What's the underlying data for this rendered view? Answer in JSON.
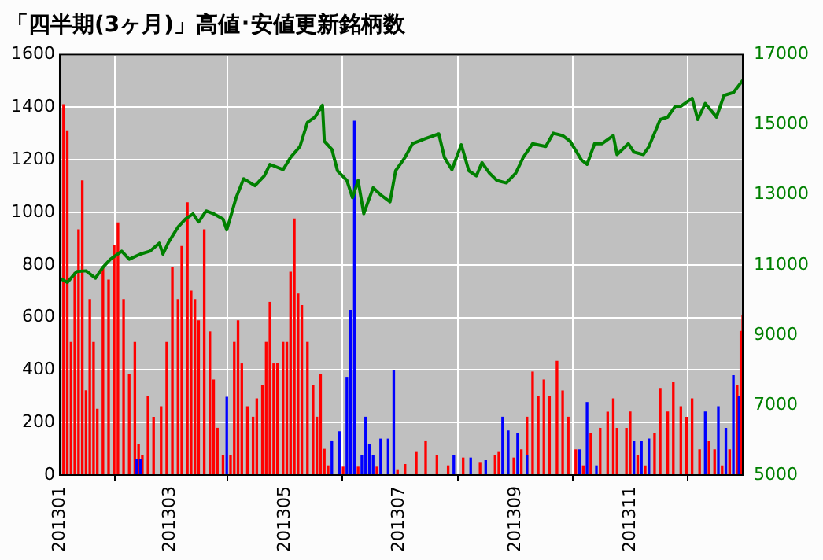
{
  "chart_data": {
    "type": "bar",
    "title": "「四半期(3ヶ月)」高値･安値更新銘柄数",
    "xlim": [
      "2013-01-01",
      "2013-12-31"
    ],
    "xticks": [
      {
        "value": "2013-01-01",
        "label": "201301"
      },
      {
        "value": "2013-03-01",
        "label": "201303"
      },
      {
        "value": "2013-05-01",
        "label": "201305"
      },
      {
        "value": "2013-07-01",
        "label": "201307"
      },
      {
        "value": "2013-09-01",
        "label": "201309"
      },
      {
        "value": "2013-11-01",
        "label": "201311"
      }
    ],
    "ylim": [
      0,
      1600
    ],
    "yticks": [
      0,
      200,
      400,
      600,
      800,
      1000,
      1200,
      1400,
      1600
    ],
    "y2lim": [
      5000,
      17000
    ],
    "y2ticks": [
      5000,
      7000,
      9000,
      11000,
      13000,
      15000,
      17000
    ],
    "grid": true,
    "legend": false,
    "series": [
      {
        "type": "bar",
        "color": "#ff0000",
        "x": [
          "2013-01-03",
          "2013-01-05",
          "2013-01-07",
          "2013-01-09",
          "2013-01-11",
          "2013-01-13",
          "2013-01-15",
          "2013-01-17",
          "2013-01-19",
          "2013-01-21",
          "2013-01-24",
          "2013-01-27",
          "2013-01-30",
          "2013-02-01",
          "2013-02-04",
          "2013-02-07",
          "2013-02-10",
          "2013-02-12",
          "2013-02-14",
          "2013-02-17",
          "2013-02-20",
          "2013-02-24",
          "2013-02-27",
          "2013-03-02",
          "2013-03-05",
          "2013-03-07",
          "2013-03-10",
          "2013-03-12",
          "2013-03-14",
          "2013-03-16",
          "2013-03-19",
          "2013-03-22",
          "2013-03-24",
          "2013-03-26",
          "2013-03-29",
          "2013-04-02",
          "2013-04-04",
          "2013-04-06",
          "2013-04-08",
          "2013-04-11",
          "2013-04-14",
          "2013-04-16",
          "2013-04-19",
          "2013-04-21",
          "2013-04-23",
          "2013-04-25",
          "2013-04-27",
          "2013-04-30",
          "2013-05-02",
          "2013-05-04",
          "2013-05-06",
          "2013-05-08",
          "2013-05-10",
          "2013-05-13",
          "2013-05-16",
          "2013-05-18",
          "2013-05-20",
          "2013-05-22",
          "2013-05-24",
          "2013-06-01",
          "2013-06-09",
          "2013-06-19",
          "2013-06-30",
          "2013-07-04",
          "2013-07-10",
          "2013-07-15",
          "2013-07-21",
          "2013-07-27",
          "2013-08-04",
          "2013-08-13",
          "2013-08-21",
          "2013-08-23",
          "2013-08-31",
          "2013-09-04",
          "2013-09-07",
          "2013-09-10",
          "2013-09-13",
          "2013-09-16",
          "2013-09-19",
          "2013-09-23",
          "2013-09-26",
          "2013-09-29",
          "2013-10-03",
          "2013-10-07",
          "2013-10-11",
          "2013-10-16",
          "2013-10-20",
          "2013-10-23",
          "2013-10-25",
          "2013-10-30",
          "2013-11-01",
          "2013-11-05",
          "2013-11-09",
          "2013-11-14",
          "2013-11-17",
          "2013-11-21",
          "2013-11-24",
          "2013-11-28",
          "2013-12-01",
          "2013-12-04",
          "2013-12-08",
          "2013-12-13",
          "2013-12-16",
          "2013-12-20",
          "2013-12-24",
          "2013-12-28",
          "2013-12-30",
          "2013-12-31"
        ],
        "values": [
          1410,
          1310,
          505,
          770,
          934,
          1120,
          321,
          668,
          505,
          250,
          790,
          742,
          873,
          960,
          668,
          382,
          505,
          117,
          75,
          300,
          220,
          260,
          505,
          790,
          668,
          870,
          1036,
          700,
          668,
          587,
          934,
          545,
          362,
          178,
          75,
          75,
          505,
          587,
          423,
          260,
          220,
          290,
          340,
          505,
          657,
          423,
          423,
          505,
          505,
          772,
          975,
          689,
          645,
          505,
          340,
          220,
          382,
          98,
          35,
          30,
          30,
          30,
          20,
          40,
          86,
          127,
          75,
          35,
          65,
          45,
          75,
          86,
          65,
          96,
          220,
          392,
          300,
          362,
          300,
          433,
          320,
          220,
          96,
          35,
          157,
          178,
          239,
          290,
          178,
          178,
          240,
          75,
          35,
          157,
          330,
          240,
          351,
          260,
          220,
          290,
          96,
          127,
          96,
          35,
          96,
          340,
          547,
          608
        ]
      },
      {
        "type": "bar",
        "color": "#0000ff",
        "x": [
          "2013-02-11",
          "2013-02-13",
          "2013-03-31",
          "2013-05-26",
          "2013-05-30",
          "2013-06-03",
          "2013-06-05",
          "2013-06-07",
          "2013-06-11",
          "2013-06-13",
          "2013-06-15",
          "2013-06-17",
          "2013-06-21",
          "2013-06-25",
          "2013-06-28",
          "2013-07-30",
          "2013-08-08",
          "2013-08-16",
          "2013-08-25",
          "2013-08-28",
          "2013-09-02",
          "2013-09-07",
          "2013-10-05",
          "2013-10-09",
          "2013-10-14",
          "2013-11-03",
          "2013-11-07",
          "2013-11-11",
          "2013-12-11",
          "2013-12-18",
          "2013-12-22",
          "2013-12-26",
          "2013-12-29"
        ],
        "values": [
          60,
          60,
          296,
          127,
          165,
          372,
          627,
          1347,
          75,
          220,
          117,
          75,
          137,
          137,
          399,
          75,
          65,
          55,
          220,
          168,
          157,
          75,
          96,
          276,
          35,
          127,
          127,
          137,
          240,
          260,
          178,
          378,
          300
        ]
      },
      {
        "type": "line",
        "axis": "y2",
        "color": "#008000",
        "x": [
          "2013-01-01",
          "2013-01-05",
          "2013-01-10",
          "2013-01-15",
          "2013-01-20",
          "2013-01-24",
          "2013-01-28",
          "2013-02-03",
          "2013-02-07",
          "2013-02-13",
          "2013-02-18",
          "2013-02-23",
          "2013-02-25",
          "2013-02-28",
          "2013-03-05",
          "2013-03-09",
          "2013-03-13",
          "2013-03-16",
          "2013-03-20",
          "2013-03-24",
          "2013-03-29",
          "2013-03-31",
          "2013-04-05",
          "2013-04-09",
          "2013-04-15",
          "2013-04-20",
          "2013-04-23",
          "2013-04-30",
          "2013-05-04",
          "2013-05-09",
          "2013-05-13",
          "2013-05-17",
          "2013-05-21",
          "2013-05-22",
          "2013-05-26",
          "2013-05-29",
          "2013-06-03",
          "2013-06-06",
          "2013-06-09",
          "2013-06-12",
          "2013-06-17",
          "2013-06-21",
          "2013-06-26",
          "2013-06-29",
          "2013-07-04",
          "2013-07-08",
          "2013-07-15",
          "2013-07-22",
          "2013-07-25",
          "2013-07-29",
          "2013-08-03",
          "2013-08-07",
          "2013-08-11",
          "2013-08-14",
          "2013-08-18",
          "2013-08-22",
          "2013-08-27",
          "2013-09-01",
          "2013-09-05",
          "2013-09-10",
          "2013-09-17",
          "2013-09-21",
          "2013-09-26",
          "2013-09-30",
          "2013-10-06",
          "2013-10-09",
          "2013-10-13",
          "2013-10-17",
          "2013-10-23",
          "2013-10-25",
          "2013-10-31",
          "2013-11-03",
          "2013-11-08",
          "2013-11-11",
          "2013-11-17",
          "2013-11-21",
          "2013-11-25",
          "2013-11-28",
          "2013-12-04",
          "2013-12-07",
          "2013-12-11",
          "2013-12-17",
          "2013-12-21",
          "2013-12-26",
          "2013-12-31"
        ],
        "values": [
          10620,
          10500,
          10810,
          10830,
          10620,
          10930,
          11160,
          11390,
          11160,
          11310,
          11390,
          11620,
          11310,
          11650,
          12080,
          12310,
          12460,
          12230,
          12540,
          12460,
          12310,
          12000,
          12920,
          13460,
          13260,
          13540,
          13870,
          13720,
          14070,
          14380,
          15070,
          15220,
          15560,
          14530,
          14300,
          13690,
          13410,
          12920,
          13410,
          12460,
          13200,
          13000,
          12800,
          13690,
          14070,
          14460,
          14610,
          14740,
          14070,
          13720,
          14430,
          13690,
          13540,
          13920,
          13620,
          13410,
          13340,
          13620,
          14070,
          14460,
          14380,
          14760,
          14690,
          14530,
          14000,
          13870,
          14460,
          14460,
          14690,
          14150,
          14460,
          14220,
          14150,
          14380,
          15150,
          15220,
          15530,
          15530,
          15760,
          15150,
          15610,
          15220,
          15840,
          15920,
          16270
        ]
      }
    ]
  }
}
